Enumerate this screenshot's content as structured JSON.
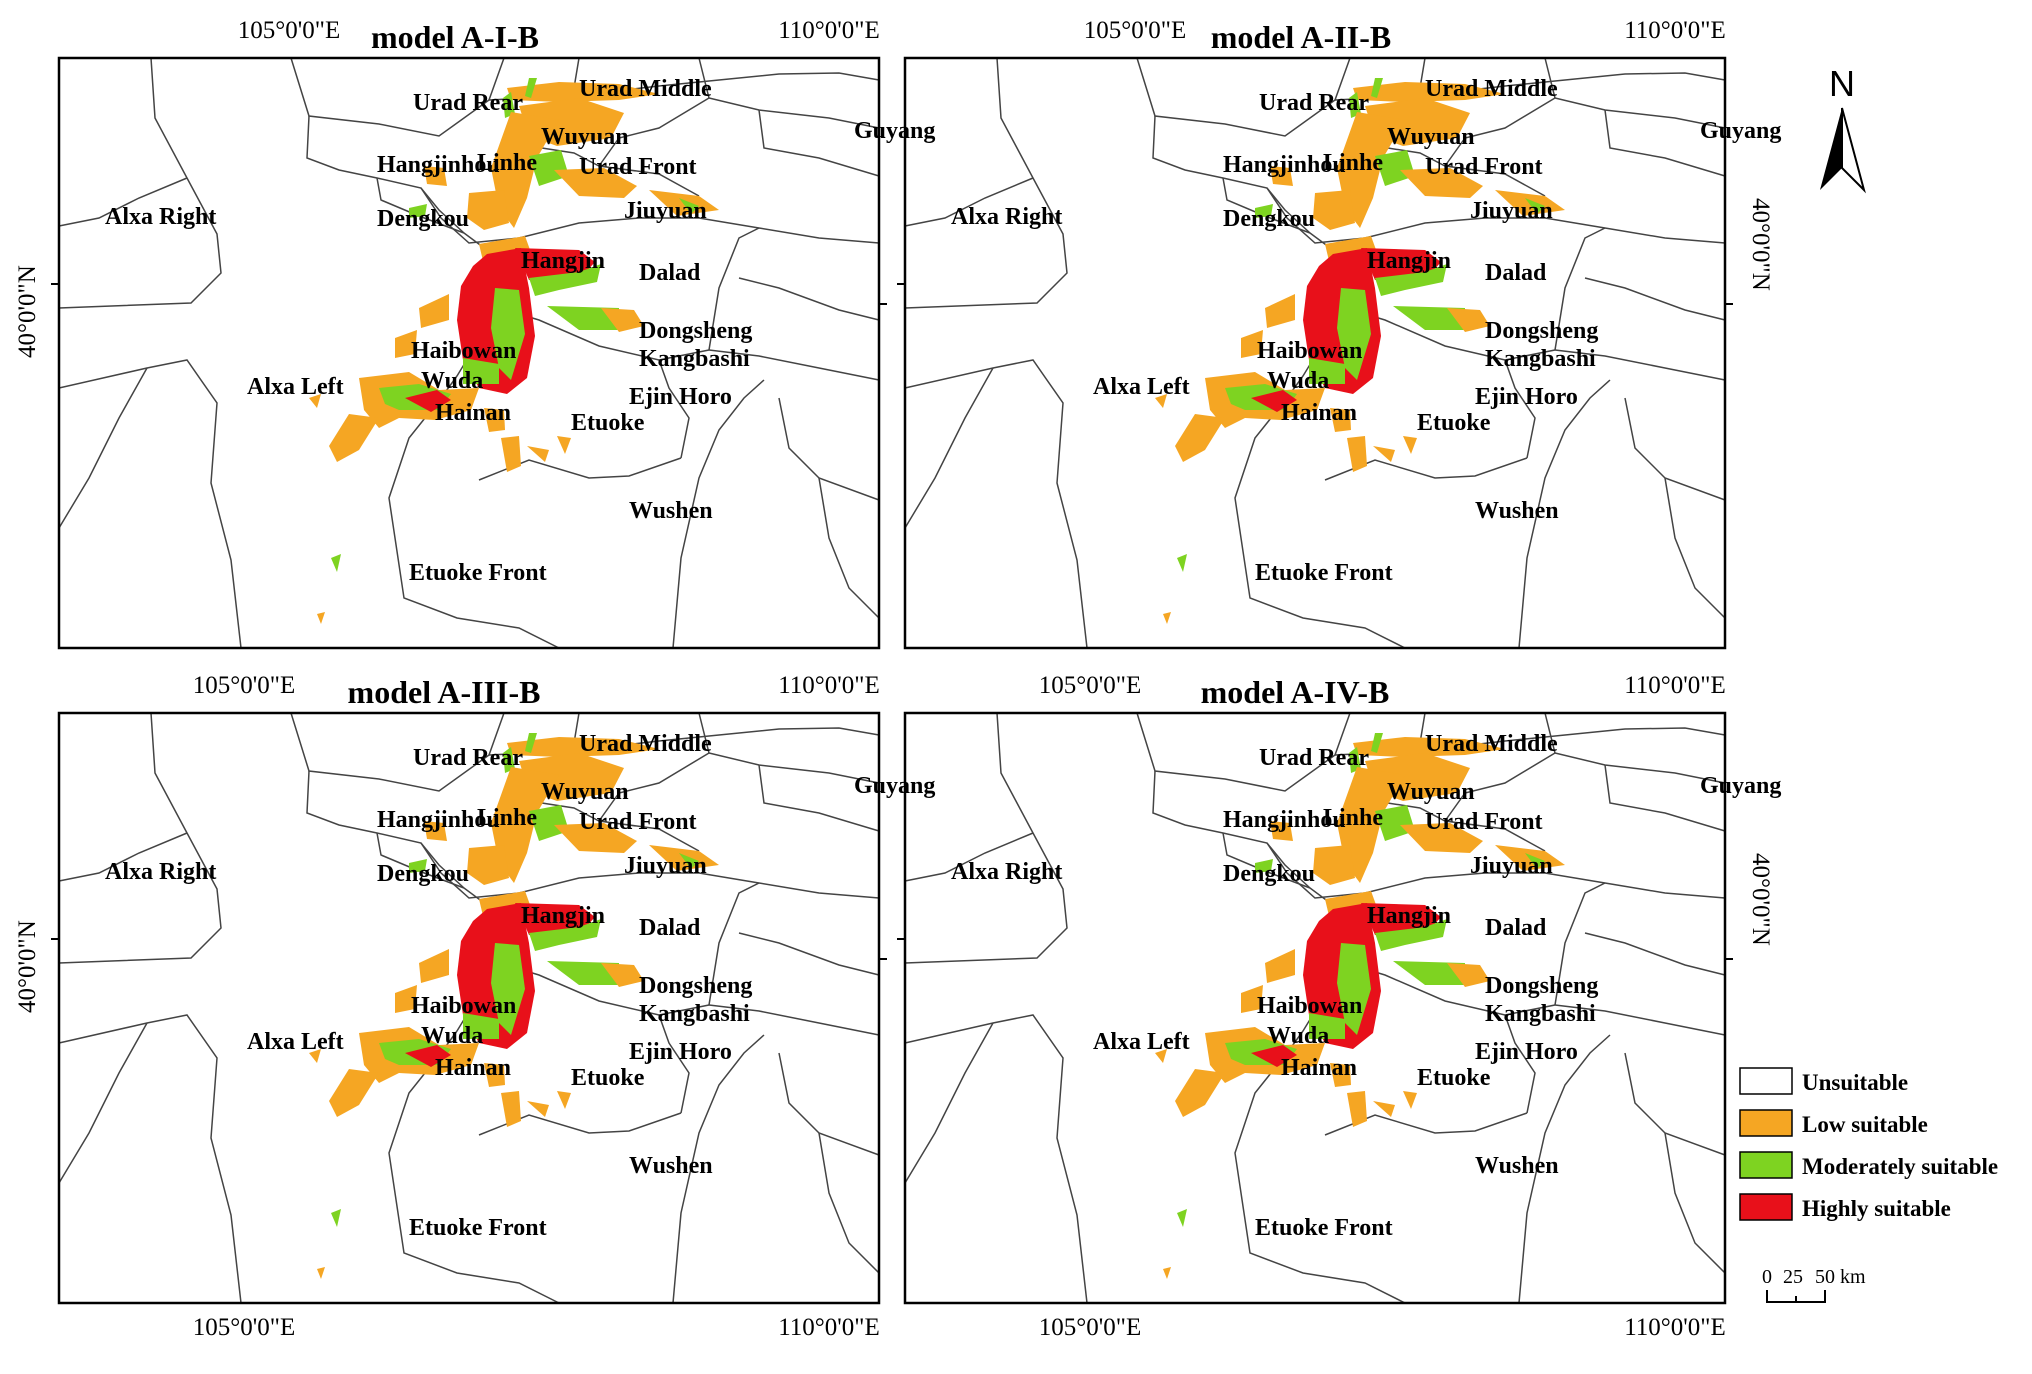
{
  "figure": {
    "coordinate_labels": {
      "lon_105": "105°0'0\"E",
      "lon_110": "110°0'0\"E",
      "lat_40": "40°0'0\"N"
    },
    "panels": [
      {
        "id": "a1",
        "title": "model A-I-B"
      },
      {
        "id": "a2",
        "title": "model A-II-B"
      },
      {
        "id": "a3",
        "title": "model A-III-B"
      },
      {
        "id": "a4",
        "title": "model A-IV-B"
      }
    ],
    "places": [
      "Urad Rear",
      "Urad Middle",
      "Guyang",
      "Wuyuan",
      "Hangjinhou",
      "Linhe",
      "Urad Front",
      "Dengkou",
      "Jiuyuan",
      "Alxa Right",
      "Hangjin",
      "Dalad",
      "Dongsheng",
      "Kangbashi",
      "Haibowan",
      "Alxa Left",
      "Wuda",
      "Hainan",
      "Etuoke",
      "Ejin Horo",
      "Wushen",
      "Etuoke Front"
    ]
  },
  "legend": {
    "items": [
      {
        "label": "Unsuitable",
        "color": "#ffffff"
      },
      {
        "label": "Low suitable",
        "color": "#f5a623"
      },
      {
        "label": "Moderately suitable",
        "color": "#7ed321"
      },
      {
        "label": "Highly suitable",
        "color": "#e8101a"
      }
    ]
  },
  "north_arrow": {
    "label": "N"
  },
  "scale_bar": {
    "ticks": [
      "0",
      "25",
      "50"
    ],
    "unit": "km"
  }
}
